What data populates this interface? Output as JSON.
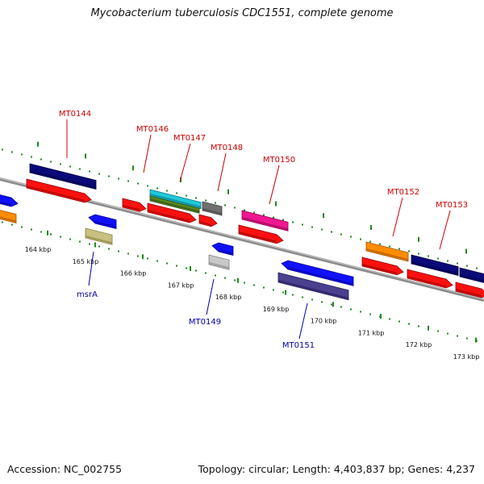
{
  "title": "Mycobacterium tuberculosis CDC1551, complete genome",
  "footer": {
    "accession": "Accession: NC_002755",
    "topology": "Topology: circular; Length: 4,403,837 bp; Genes: 4,237"
  },
  "colors": {
    "backbone": "#8a8a8a",
    "tick_dots": "#1f8a1f",
    "forward_label": "#cc0000",
    "reverse_label": "#0000aa"
  },
  "ruler": {
    "unit": "kbp",
    "ticks": [
      {
        "kbp": 164,
        "label": "164 kbp"
      },
      {
        "kbp": 165,
        "label": "165 kbp"
      },
      {
        "kbp": 166,
        "label": "166 kbp"
      },
      {
        "kbp": 167,
        "label": "167 kbp"
      },
      {
        "kbp": 168,
        "label": "168 kbp"
      },
      {
        "kbp": 169,
        "label": "169 kbp"
      },
      {
        "kbp": 170,
        "label": "170 kbp"
      },
      {
        "kbp": 171,
        "label": "171 kbp"
      },
      {
        "kbp": 172,
        "label": "172 kbp"
      },
      {
        "kbp": 173,
        "label": "173 kbp"
      }
    ]
  },
  "gene_labels": {
    "forward": [
      "MT0144",
      "MT0146",
      "MT0147",
      "MT0148",
      "MT0150",
      "MT0152",
      "MT0153"
    ],
    "reverse": [
      "msrA",
      "MT0149",
      "MT0151"
    ]
  }
}
